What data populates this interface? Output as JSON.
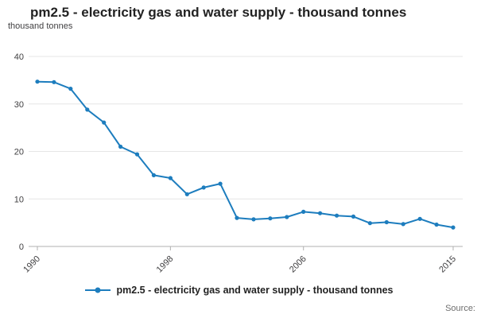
{
  "page": {
    "source_label": "Source:"
  },
  "chart_data": {
    "type": "line",
    "title": "pm2.5 - electricity gas and water supply - thousand tonnes",
    "ylabel": "thousand tonnes",
    "xlabel": "",
    "ylim": [
      0,
      40
    ],
    "yticks": [
      0,
      10,
      20,
      30,
      40
    ],
    "x": [
      1990,
      1991,
      1992,
      1993,
      1994,
      1995,
      1996,
      1997,
      1998,
      1999,
      2000,
      2001,
      2002,
      2003,
      2004,
      2005,
      2006,
      2007,
      2008,
      2009,
      2010,
      2011,
      2012,
      2013,
      2014,
      2015
    ],
    "x_tick_labels": [
      "1990",
      "1998",
      "2006",
      "2015"
    ],
    "series": [
      {
        "name": "pm2.5 - electricity gas and water supply - thousand tonnes",
        "values": [
          34.7,
          34.6,
          33.2,
          28.8,
          26.1,
          21.0,
          19.4,
          15.0,
          14.4,
          11.0,
          12.4,
          13.2,
          6.0,
          5.7,
          5.9,
          6.2,
          7.3,
          7.0,
          6.5,
          6.3,
          4.9,
          5.1,
          4.7,
          5.8,
          4.6,
          4.0
        ]
      }
    ],
    "legend_position": "bottom",
    "grid": true,
    "line_color": "#1d7dbe",
    "marker": "circle",
    "grid_color": "#e6e6e6",
    "axis_color": "#b0b0b0",
    "tick_label_color": "#414042"
  }
}
